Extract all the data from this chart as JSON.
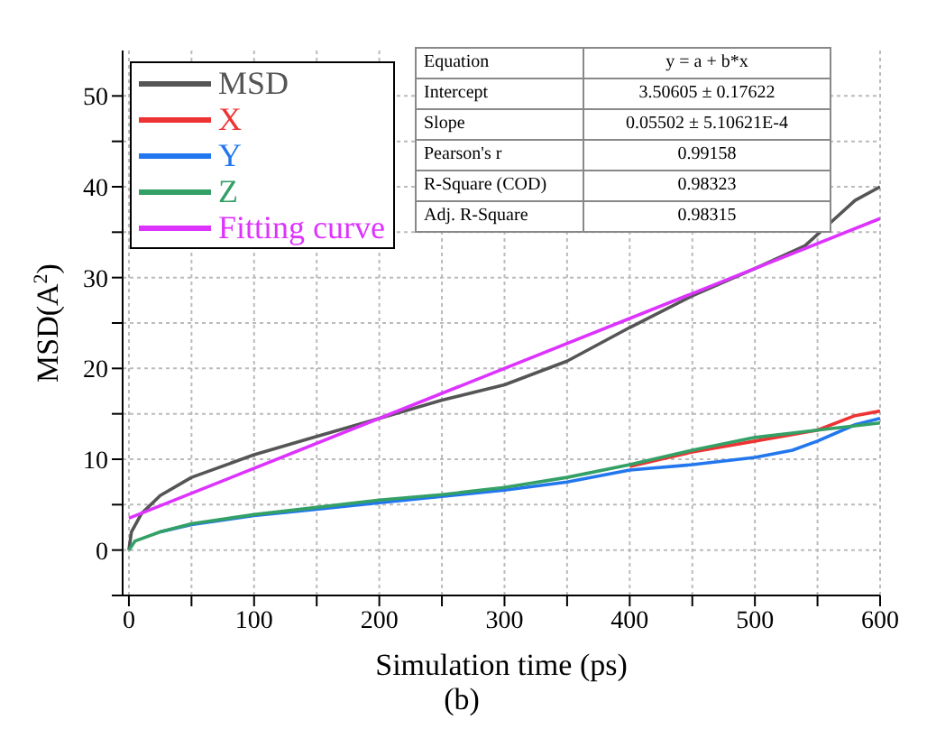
{
  "chart_data": {
    "type": "line",
    "xlabel": "Simulation time (ps)",
    "ylabel": "MSD(A$^{2}$)",
    "subtitle": "(b)",
    "xlim": [
      -5,
      600
    ],
    "xticks": [
      0,
      {
        "value": 50,
        "label": null
      },
      100,
      {
        "value": 150,
        "label": null
      },
      200,
      {
        "value": 250,
        "label": null
      },
      300,
      {
        "value": 350,
        "label": null
      },
      400,
      {
        "value": 450,
        "label": null
      },
      500,
      {
        "value": 550,
        "label": null
      },
      600
    ],
    "ylim": [
      -5,
      55
    ],
    "yticks": [
      {
        "value": -5,
        "label": null
      },
      0,
      {
        "value": 5,
        "label": null
      },
      10,
      {
        "value": 15,
        "label": null
      },
      20,
      {
        "value": 25,
        "label": null
      },
      30,
      {
        "value": 35,
        "label": null
      },
      40,
      {
        "value": 45,
        "label": null
      },
      50
    ],
    "grid": true,
    "legend": "top left",
    "marker": "none",
    "line_style": "solid",
    "annotations": [
      "Equation",
      "y = a + b*x",
      "Intercept",
      "3.50605 ± 0.17622",
      "Slope",
      "0.05502 ± 5.10621E-4",
      "Pearson's r",
      "0.99158",
      "R-Square (COD)",
      "0.98323",
      "Adj. R-Square",
      "0.98315"
    ],
    "series": [
      {
        "name": "MSD",
        "color": "#555555",
        "x": [
          0,
          2,
          10,
          25,
          50,
          100,
          150,
          200,
          250,
          300,
          350,
          400,
          450,
          500,
          540,
          560,
          580,
          600
        ],
        "values": [
          0,
          2,
          4,
          6,
          8,
          10.5,
          12.5,
          14.5,
          16.5,
          18.2,
          20.8,
          24.5,
          28,
          31,
          33.5,
          36,
          38.5,
          40
        ]
      },
      {
        "name": "X",
        "color": "#ee3333",
        "x": [
          400,
          450,
          500,
          550,
          580,
          600
        ],
        "values": [
          9.2,
          10.8,
          12,
          13.2,
          14.8,
          15.3
        ]
      },
      {
        "name": "Y",
        "color": "#2277ee",
        "x": [
          25,
          50,
          100,
          150,
          200,
          250,
          300,
          350,
          400,
          450,
          500,
          530,
          550,
          580,
          600
        ],
        "values": [
          2,
          2.8,
          3.8,
          4.5,
          5.2,
          5.9,
          6.6,
          7.5,
          8.8,
          9.4,
          10.2,
          11,
          12,
          13.8,
          14.5
        ]
      },
      {
        "name": "Z",
        "color": "#33a066",
        "x": [
          0,
          5,
          25,
          50,
          100,
          150,
          200,
          250,
          300,
          350,
          400,
          450,
          500,
          550,
          600
        ],
        "values": [
          0,
          1,
          2,
          2.9,
          3.9,
          4.7,
          5.5,
          6.1,
          6.9,
          8,
          9.4,
          11,
          12.4,
          13.2,
          14
        ]
      },
      {
        "name": "Fitting curve",
        "color": "#dd33ff",
        "x": [
          0,
          600
        ],
        "values": [
          3.5,
          36.5
        ]
      }
    ]
  }
}
